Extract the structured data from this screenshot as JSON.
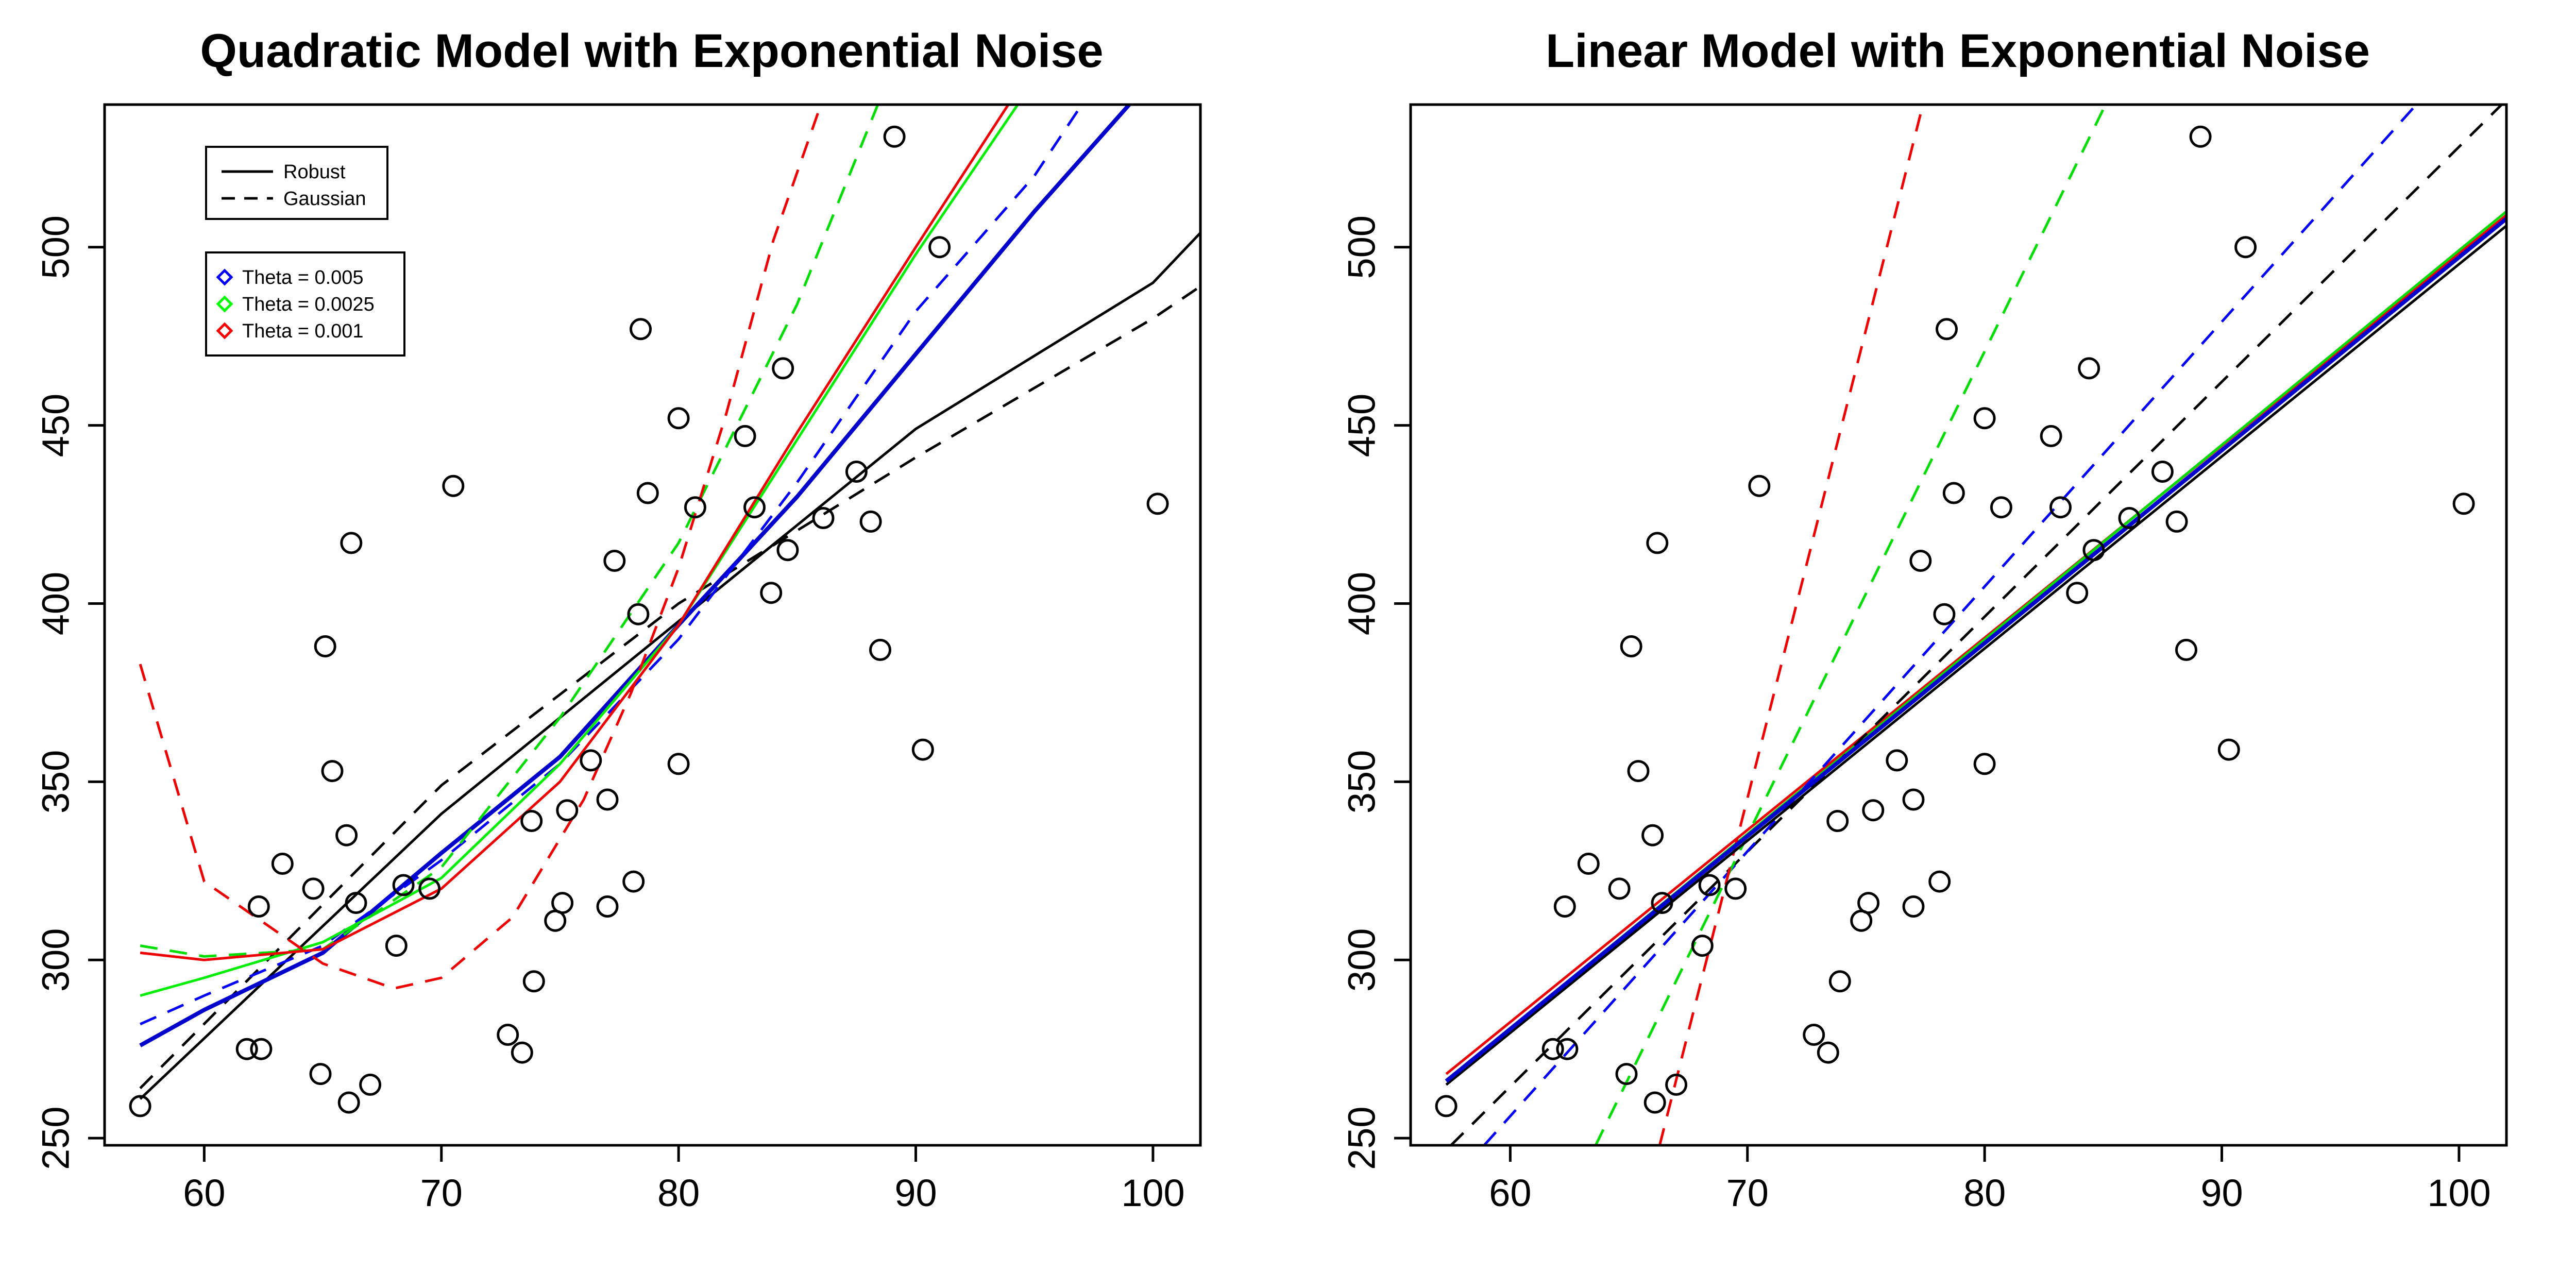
{
  "chart_data": [
    {
      "type": "scatter",
      "title": "Quadratic Model with Exponential Noise",
      "xlabel": "",
      "ylabel": "",
      "xlim": [
        55.8,
        102
      ],
      "ylim": [
        248,
        540
      ],
      "xticks": [
        60,
        70,
        80,
        90,
        100
      ],
      "yticks": [
        250,
        300,
        350,
        400,
        450,
        500
      ],
      "grid": false,
      "points": [
        [
          57.3,
          259
        ],
        [
          61.8,
          275
        ],
        [
          62.3,
          315
        ],
        [
          62.4,
          275
        ],
        [
          63.3,
          327
        ],
        [
          64.6,
          320
        ],
        [
          64.9,
          268
        ],
        [
          65.1,
          388
        ],
        [
          65.4,
          353
        ],
        [
          66.0,
          335
        ],
        [
          66.1,
          260
        ],
        [
          66.2,
          417
        ],
        [
          66.4,
          316
        ],
        [
          67.0,
          265
        ],
        [
          68.1,
          304
        ],
        [
          68.4,
          321
        ],
        [
          69.5,
          320
        ],
        [
          70.5,
          433
        ],
        [
          72.8,
          279
        ],
        [
          73.4,
          274
        ],
        [
          73.8,
          339
        ],
        [
          73.9,
          294
        ],
        [
          74.8,
          311
        ],
        [
          75.1,
          316
        ],
        [
          75.3,
          342
        ],
        [
          76.3,
          356
        ],
        [
          77.0,
          345
        ],
        [
          77.0,
          315
        ],
        [
          77.3,
          412
        ],
        [
          78.1,
          322
        ],
        [
          78.3,
          397
        ],
        [
          78.4,
          477
        ],
        [
          78.7,
          431
        ],
        [
          80.0,
          452
        ],
        [
          80.0,
          355
        ],
        [
          80.7,
          427
        ],
        [
          82.8,
          447
        ],
        [
          83.2,
          427
        ],
        [
          83.9,
          403
        ],
        [
          84.4,
          466
        ],
        [
          84.6,
          415
        ],
        [
          86.1,
          424
        ],
        [
          87.5,
          437
        ],
        [
          88.1,
          423
        ],
        [
          88.5,
          387
        ],
        [
          89.1,
          531
        ],
        [
          90.3,
          359
        ],
        [
          91.0,
          500
        ],
        [
          100.2,
          428
        ]
      ],
      "series": [
        {
          "legend": "Robust",
          "theta": "",
          "color": "#000000",
          "dash": false,
          "x": [
            57.3,
            70,
            80,
            90,
            100,
            102
          ],
          "y": [
            261,
            341,
            395,
            449,
            490,
            504
          ]
        },
        {
          "legend": "Gaussian",
          "theta": "",
          "color": "#000000",
          "dash": true,
          "x": [
            57.3,
            70,
            80,
            90,
            100,
            102
          ],
          "y": [
            264,
            349,
            400,
            441,
            480,
            489
          ]
        },
        {
          "legend": "Robust",
          "theta": "Theta = 0.005",
          "color": "#0000cc",
          "dash": false,
          "x": [
            57.3,
            60,
            65,
            70,
            75,
            80,
            85,
            90,
            95,
            99
          ],
          "y": [
            276,
            286,
            302,
            330,
            357,
            394,
            430,
            470,
            510,
            540
          ]
        },
        {
          "legend": "Gaussian",
          "theta": "Theta = 0.005",
          "color": "#0000ff",
          "dash": true,
          "x": [
            57.3,
            60,
            65,
            70,
            75,
            80,
            85,
            90,
            95,
            97
          ],
          "y": [
            282,
            290,
            304,
            328,
            355,
            390,
            434,
            482,
            520,
            540
          ]
        },
        {
          "legend": "Robust",
          "theta": "Theta = 0.0025",
          "color": "#00ee00",
          "dash": false,
          "x": [
            57.3,
            60,
            65,
            70,
            75,
            80,
            85,
            90,
            94.3
          ],
          "y": [
            290,
            295,
            305,
            323,
            355,
            394,
            446,
            498,
            540
          ]
        },
        {
          "legend": "Gaussian",
          "theta": "Theta = 0.0025",
          "color": "#00dd00",
          "dash": true,
          "x": [
            57.3,
            60,
            65,
            70,
            75,
            80,
            85,
            88.4
          ],
          "y": [
            304,
            301,
            303,
            326,
            368,
            417,
            484,
            540
          ]
        },
        {
          "legend": "Robust",
          "theta": "Theta = 0.001",
          "color": "#ee0000",
          "dash": false,
          "x": [
            57.3,
            60,
            65,
            70,
            75,
            80,
            85,
            90,
            93.9
          ],
          "y": [
            302,
            300,
            303,
            320,
            350,
            394,
            448,
            500,
            540
          ]
        },
        {
          "legend": "Gaussian",
          "theta": "Theta = 0.001",
          "color": "#ee0000",
          "dash": true,
          "x": [
            57.3,
            60,
            65,
            68,
            70,
            73,
            76,
            78,
            80,
            82,
            84,
            86
          ],
          "y": [
            383,
            322,
            299,
            292,
            295,
            312,
            345,
            375,
            410,
            453,
            502,
            540
          ]
        }
      ],
      "legend": [
        {
          "placement": "top-left",
          "entries": [
            {
              "label": "Robust",
              "dash": false
            },
            {
              "label": "Gaussian",
              "dash": true
            }
          ]
        },
        {
          "placement": "top-left",
          "entries": [
            {
              "label": "Theta = 0.005",
              "color": "#0000ff"
            },
            {
              "label": "Theta = 0.0025",
              "color": "#00ff00"
            },
            {
              "label": "Theta = 0.001",
              "color": "#ff0000"
            }
          ]
        }
      ]
    },
    {
      "type": "scatter",
      "title": "Linear Model with Exponential Noise",
      "xlabel": "",
      "ylabel": "",
      "xlim": [
        55.8,
        102
      ],
      "ylim": [
        248,
        540
      ],
      "xticks": [
        60,
        70,
        80,
        90,
        100
      ],
      "yticks": [
        250,
        300,
        350,
        400,
        450,
        500
      ],
      "grid": false,
      "points": [
        [
          57.3,
          259
        ],
        [
          61.8,
          275
        ],
        [
          62.3,
          315
        ],
        [
          62.4,
          275
        ],
        [
          63.3,
          327
        ],
        [
          64.6,
          320
        ],
        [
          64.9,
          268
        ],
        [
          65.1,
          388
        ],
        [
          65.4,
          353
        ],
        [
          66.0,
          335
        ],
        [
          66.1,
          260
        ],
        [
          66.2,
          417
        ],
        [
          66.4,
          316
        ],
        [
          67.0,
          265
        ],
        [
          68.1,
          304
        ],
        [
          68.4,
          321
        ],
        [
          69.5,
          320
        ],
        [
          70.5,
          433
        ],
        [
          72.8,
          279
        ],
        [
          73.4,
          274
        ],
        [
          73.8,
          339
        ],
        [
          73.9,
          294
        ],
        [
          74.8,
          311
        ],
        [
          75.1,
          316
        ],
        [
          75.3,
          342
        ],
        [
          76.3,
          356
        ],
        [
          77.0,
          345
        ],
        [
          77.0,
          315
        ],
        [
          77.3,
          412
        ],
        [
          78.1,
          322
        ],
        [
          78.3,
          397
        ],
        [
          78.4,
          477
        ],
        [
          78.7,
          431
        ],
        [
          80.0,
          452
        ],
        [
          80.0,
          355
        ],
        [
          80.7,
          427
        ],
        [
          82.8,
          447
        ],
        [
          83.2,
          427
        ],
        [
          83.9,
          403
        ],
        [
          84.4,
          466
        ],
        [
          84.6,
          415
        ],
        [
          86.1,
          424
        ],
        [
          87.5,
          437
        ],
        [
          88.1,
          423
        ],
        [
          88.5,
          387
        ],
        [
          89.1,
          531
        ],
        [
          90.3,
          359
        ],
        [
          91.0,
          500
        ],
        [
          100.2,
          428
        ]
      ],
      "series": [
        {
          "legend": "Robust",
          "theta": "Theta = 0.001",
          "color": "#ee0000",
          "dash": false,
          "x": [
            57.3,
            102
          ],
          "y": [
            268,
            509
          ]
        },
        {
          "legend": "Robust",
          "theta": "Theta = 0.0025",
          "color": "#00dd00",
          "dash": false,
          "x": [
            57.3,
            102
          ],
          "y": [
            266,
            510
          ]
        },
        {
          "legend": "Gaussian",
          "theta": "",
          "color": "#000000",
          "dash": true,
          "x": [
            57.5,
            101.8
          ],
          "y": [
            248,
            540
          ]
        },
        {
          "legend": "Gaussian",
          "theta": "Theta = 0.005",
          "color": "#0000ff",
          "dash": true,
          "x": [
            58.9,
            98.2
          ],
          "y": [
            248,
            540
          ]
        },
        {
          "legend": "Gaussian",
          "theta": "Theta = 0.0025",
          "color": "#00dd00",
          "dash": true,
          "x": [
            63.6,
            85.1
          ],
          "y": [
            248,
            540
          ]
        },
        {
          "legend": "Gaussian",
          "theta": "Theta = 0.001",
          "color": "#ee0000",
          "dash": true,
          "x": [
            66.3,
            77.4
          ],
          "y": [
            248,
            540
          ]
        },
        {
          "legend": "Robust",
          "theta": "",
          "color": "#000000",
          "dash": false,
          "x": [
            57.3,
            102
          ],
          "y": [
            265,
            506
          ]
        },
        {
          "legend": "Robust",
          "theta": "Theta = 0.005",
          "color": "#0000cc",
          "dash": false,
          "x": [
            57.3,
            102
          ],
          "y": [
            266,
            508
          ]
        }
      ]
    }
  ]
}
